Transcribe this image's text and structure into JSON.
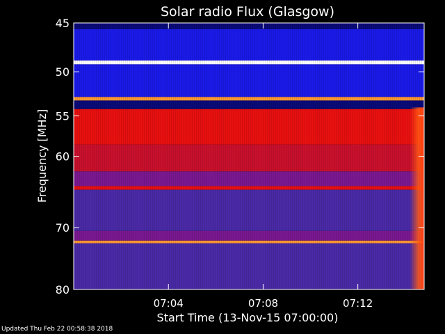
{
  "chart_data": {
    "type": "heatmap",
    "title": "Solar radio Flux (Glasgow)",
    "xlabel": "Start Time (13-Nov-15 07:00:00)",
    "ylabel": "Frequency [MHz]",
    "x_unit": "minutes after 07:00:00",
    "xlim": [
      0,
      14.8
    ],
    "y_scale": "log",
    "ylim": [
      45,
      80
    ],
    "x_ticks": [
      {
        "value": 4,
        "label": "07:04"
      },
      {
        "value": 8,
        "label": "07:08"
      },
      {
        "value": 12,
        "label": "07:12"
      }
    ],
    "y_ticks": [
      {
        "value": 45,
        "label": "45"
      },
      {
        "value": 50,
        "label": "50"
      },
      {
        "value": 55,
        "label": "55"
      },
      {
        "value": 60,
        "label": "60"
      },
      {
        "value": 70,
        "label": "70"
      },
      {
        "value": 80,
        "label": "80"
      }
    ],
    "frequency_bands": [
      {
        "from": 45.0,
        "to": 45.6,
        "level": "dark-blue"
      },
      {
        "from": 45.6,
        "to": 48.8,
        "level": "blue"
      },
      {
        "from": 48.8,
        "to": 49.2,
        "level": "white"
      },
      {
        "from": 49.2,
        "to": 52.8,
        "level": "blue"
      },
      {
        "from": 52.8,
        "to": 53.2,
        "level": "orange"
      },
      {
        "from": 53.2,
        "to": 54.2,
        "level": "dark-blue"
      },
      {
        "from": 54.2,
        "to": 58.5,
        "level": "red"
      },
      {
        "from": 58.5,
        "to": 62.0,
        "level": "crimson"
      },
      {
        "from": 62.0,
        "to": 64.0,
        "level": "purple-red"
      },
      {
        "from": 64.0,
        "to": 64.5,
        "level": "red"
      },
      {
        "from": 64.5,
        "to": 70.5,
        "level": "purple"
      },
      {
        "from": 70.5,
        "to": 72.0,
        "level": "purple-red"
      },
      {
        "from": 72.0,
        "to": 72.4,
        "level": "orange"
      },
      {
        "from": 72.4,
        "to": 80.0,
        "level": "purple"
      }
    ],
    "colors": {
      "dark-blue": "#0a0a78",
      "blue": "#1a1ae8",
      "white": "#ffffff",
      "orange": "#ff9a30",
      "red": "#e81010",
      "crimson": "#c8102c",
      "purple-red": "#7a1890",
      "purple": "#4a2aa6",
      "edge": "#ff5a14"
    },
    "right_edge_glow_from_minutes": 14.2
  },
  "footer": {
    "updated": "Updated Thu Feb 22 00:58:38 2018"
  }
}
